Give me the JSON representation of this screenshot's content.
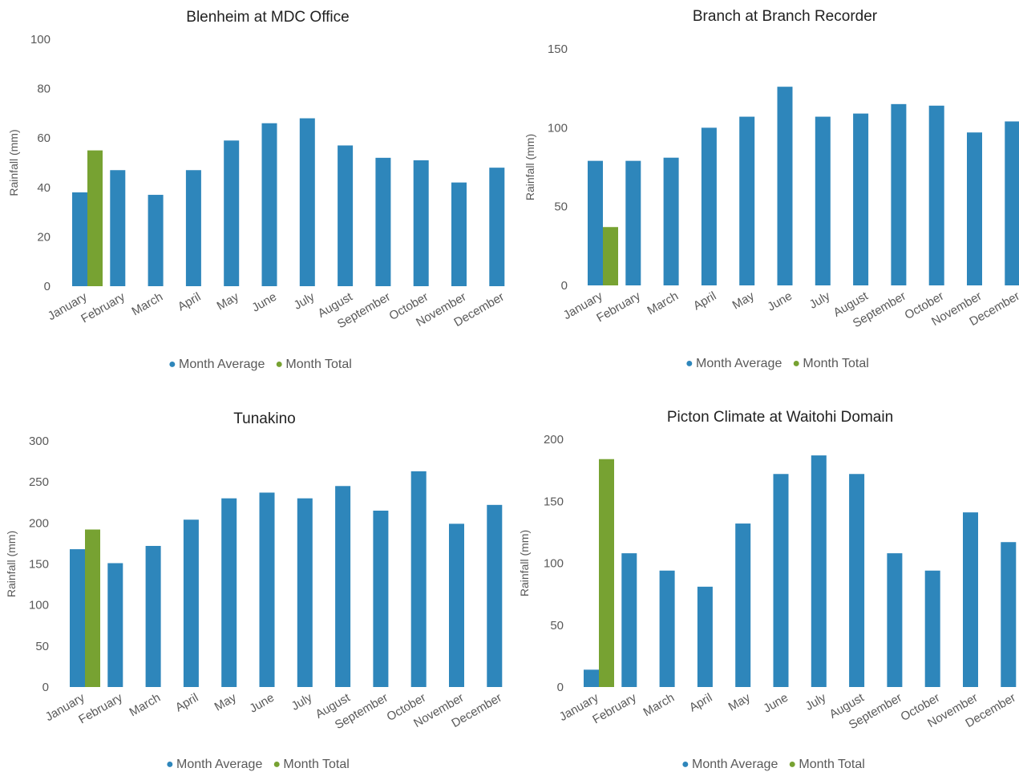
{
  "colors": {
    "average": "#2E86BB",
    "total": "#77A232",
    "axis_text": "#595959",
    "title_text": "#222222"
  },
  "legend_marker": "●",
  "chart_data": [
    {
      "type": "bar",
      "title": "Blenheim at MDC Office",
      "ylabel": "Rainfall (mm)",
      "ylim": [
        0,
        100
      ],
      "yticks": [
        0,
        20,
        40,
        60,
        80,
        100
      ],
      "legend": "bottom",
      "categories": [
        "January",
        "February",
        "March",
        "April",
        "May",
        "June",
        "July",
        "August",
        "September",
        "October",
        "November",
        "December"
      ],
      "series": [
        {
          "name": "Month Average",
          "values": [
            38,
            47,
            37,
            47,
            59,
            66,
            68,
            57,
            52,
            51,
            42,
            48
          ]
        },
        {
          "name": "Month Total",
          "values": [
            55,
            null,
            null,
            null,
            null,
            null,
            null,
            null,
            null,
            null,
            null,
            null
          ]
        }
      ]
    },
    {
      "type": "bar",
      "title": "Branch at Branch Recorder",
      "ylabel": "Rainfall (mm)",
      "ylim": [
        0,
        150
      ],
      "yticks": [
        0,
        50,
        100,
        150
      ],
      "legend": "bottom",
      "categories": [
        "January",
        "February",
        "March",
        "April",
        "May",
        "June",
        "July",
        "August",
        "September",
        "October",
        "November",
        "December"
      ],
      "series": [
        {
          "name": "Month Average",
          "values": [
            79,
            79,
            81,
            100,
            107,
            126,
            107,
            109,
            115,
            114,
            97,
            104
          ]
        },
        {
          "name": "Month Total",
          "values": [
            37,
            null,
            null,
            null,
            null,
            null,
            null,
            null,
            null,
            null,
            null,
            null
          ]
        }
      ]
    },
    {
      "type": "bar",
      "title": "Tunakino",
      "ylabel": "Rainfall (mm)",
      "ylim": [
        0,
        300
      ],
      "yticks": [
        0,
        50,
        100,
        150,
        200,
        250,
        300
      ],
      "legend": "bottom",
      "categories": [
        "January",
        "February",
        "March",
        "April",
        "May",
        "June",
        "July",
        "August",
        "September",
        "October",
        "November",
        "December"
      ],
      "series": [
        {
          "name": "Month Average",
          "values": [
            168,
            151,
            172,
            204,
            230,
            237,
            230,
            245,
            215,
            263,
            199,
            222
          ]
        },
        {
          "name": "Month Total",
          "values": [
            192,
            null,
            null,
            null,
            null,
            null,
            null,
            null,
            null,
            null,
            null,
            null
          ]
        }
      ]
    },
    {
      "type": "bar",
      "title": "Picton Climate at Waitohi Domain",
      "ylabel": "Rainfall (mm)",
      "ylim": [
        0,
        200
      ],
      "yticks": [
        0,
        50,
        100,
        150,
        200
      ],
      "legend": "bottom",
      "categories": [
        "January",
        "February",
        "March",
        "April",
        "May",
        "June",
        "July",
        "August",
        "September",
        "October",
        "November",
        "December"
      ],
      "series": [
        {
          "name": "Month Average",
          "values": [
            14,
            108,
            94,
            81,
            132,
            172,
            187,
            172,
            108,
            94,
            141,
            117
          ]
        },
        {
          "name": "Month Total",
          "values": [
            184,
            null,
            null,
            null,
            null,
            null,
            null,
            null,
            null,
            null,
            null,
            null
          ]
        }
      ]
    }
  ]
}
